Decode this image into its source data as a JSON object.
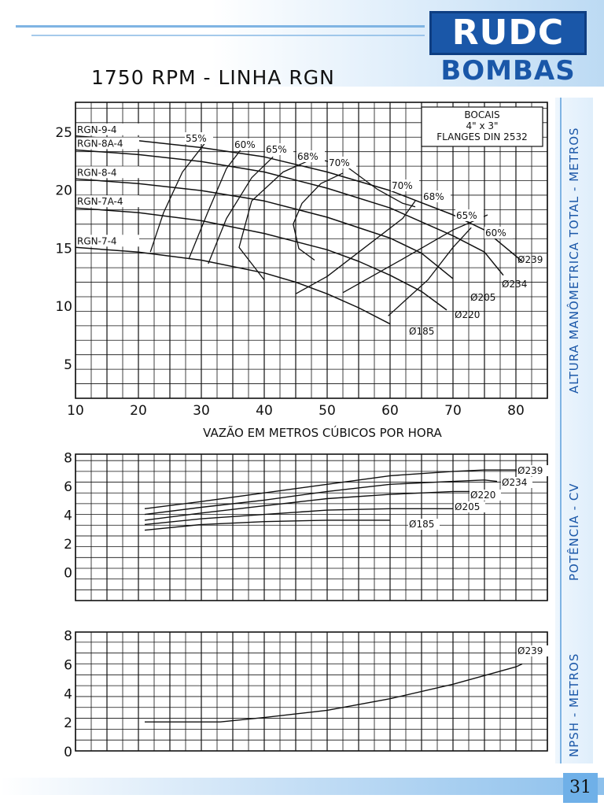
{
  "header": {
    "title": "1750 RPM - LINHA RGN"
  },
  "logo": {
    "line1": "RUDC",
    "line2": "BOMBAS",
    "brand_color": "#1a57a8"
  },
  "side_labels": {
    "head": "ALTURA MANÔMETRICA TOTAL - METROS",
    "power": "POTÊNCIA - CV",
    "npsh": "NPSH - METROS"
  },
  "page_number": "31",
  "chart_data": [
    {
      "type": "line",
      "id": "head",
      "xlabel": "VAZÃO EM METROS CÚBICOS POR HORA",
      "ylabel": "ALTURA MANÔMETRICA TOTAL - METROS",
      "xlim": [
        10,
        85
      ],
      "ylim": [
        2,
        27.5
      ],
      "x_ticks": [
        10,
        20,
        30,
        40,
        50,
        60,
        70,
        80
      ],
      "y_ticks": [
        5,
        10,
        15,
        20,
        25
      ],
      "grid": true,
      "note": [
        "BOCAIS",
        "4\" x 3\"",
        "FLANGES DIN 2532"
      ],
      "series": [
        {
          "name": "RGN-9-4",
          "diameter": "Ø239",
          "x": [
            10,
            20,
            30,
            40,
            50,
            60,
            70,
            75,
            81
          ],
          "y": [
            24.6,
            24.2,
            23.6,
            22.8,
            21.5,
            19.9,
            17.8,
            16.5,
            13.8
          ]
        },
        {
          "name": "RGN-8A-4",
          "diameter": "Ø234",
          "x": [
            10,
            20,
            30,
            40,
            50,
            60,
            70,
            75,
            78
          ],
          "y": [
            23.4,
            23.0,
            22.4,
            21.5,
            20.1,
            18.4,
            16.0,
            14.6,
            12.6
          ]
        },
        {
          "name": "RGN-8-4",
          "diameter": "Ø205",
          "x": [
            10,
            20,
            30,
            40,
            50,
            60,
            65,
            70
          ],
          "y": [
            20.9,
            20.5,
            19.9,
            19.0,
            17.6,
            15.8,
            14.5,
            12.3
          ]
        },
        {
          "name": "RGN-7A-4",
          "diameter": "Ø220",
          "x": [
            10,
            20,
            30,
            40,
            50,
            55,
            60,
            65,
            69
          ],
          "y": [
            18.4,
            18.0,
            17.3,
            16.2,
            14.8,
            13.8,
            12.6,
            11.2,
            9.6
          ]
        },
        {
          "name": "RGN-7-4",
          "diameter": "Ø185",
          "x": [
            10,
            20,
            30,
            40,
            45,
            50,
            55,
            60
          ],
          "y": [
            15.0,
            14.6,
            13.9,
            12.8,
            12.0,
            11.0,
            9.8,
            8.4
          ]
        }
      ],
      "efficiency_curves": [
        {
          "label": "55%",
          "x": [
            21.9,
            24,
            27,
            30.6
          ],
          "y": [
            14.6,
            18,
            21.5,
            24.0
          ]
        },
        {
          "label": "60%",
          "x": [
            28,
            31,
            34,
            36.8
          ],
          "y": [
            14.0,
            18,
            21.8,
            23.8
          ]
        },
        {
          "label": "60%",
          "x": [
            52.5,
            62,
            70,
            75.5
          ],
          "y": [
            11.1,
            14,
            16.5,
            17.8
          ]
        },
        {
          "label": "65%",
          "x": [
            31.1,
            34,
            38,
            41.4
          ],
          "y": [
            13.6,
            17.5,
            21,
            22.8
          ]
        },
        {
          "label": "65%",
          "x": [
            59.7,
            66,
            70,
            72.9
          ],
          "y": [
            9.1,
            12.2,
            15,
            16.7
          ]
        },
        {
          "label": "68%",
          "x": [
            40,
            36,
            38,
            43,
            48,
            53,
            58,
            62,
            64
          ],
          "y": [
            12.2,
            15,
            19,
            21.5,
            22.7,
            22.0,
            20,
            18.8,
            18.5
          ]
        },
        {
          "label": "70%",
          "x": [
            48,
            45.5,
            44.6,
            46,
            49,
            52.5
          ],
          "y": [
            13.9,
            14.9,
            17,
            18.8,
            20.5,
            21.4
          ]
        },
        {
          "label": "70%",
          "x": [
            45,
            50,
            56,
            62,
            64
          ],
          "y": [
            11.0,
            12.5,
            15,
            17.5,
            19
          ]
        }
      ]
    },
    {
      "type": "line",
      "id": "power",
      "ylabel": "POTÊNCIA - CV",
      "ylim": [
        -2,
        8.2
      ],
      "y_ticks": [
        0,
        2,
        4,
        6,
        8
      ],
      "grid": true,
      "series": [
        {
          "name": "Ø239",
          "x": [
            21,
            30,
            40,
            50,
            60,
            70,
            75,
            81
          ],
          "y": [
            4.4,
            4.9,
            5.5,
            6.1,
            6.7,
            7.0,
            7.1,
            7.1
          ]
        },
        {
          "name": "Ø234",
          "x": [
            21,
            30,
            40,
            50,
            60,
            70,
            75,
            77
          ],
          "y": [
            4.0,
            4.5,
            5.0,
            5.6,
            6.1,
            6.3,
            6.4,
            6.3
          ]
        },
        {
          "name": "Ø220",
          "x": [
            21,
            30,
            40,
            50,
            60,
            70,
            73
          ],
          "y": [
            3.6,
            4.1,
            4.6,
            5.1,
            5.4,
            5.6,
            5.6
          ]
        },
        {
          "name": "Ø205",
          "x": [
            21,
            30,
            40,
            50,
            60,
            70
          ],
          "y": [
            3.3,
            3.7,
            4.0,
            4.3,
            4.4,
            4.4
          ]
        },
        {
          "name": "Ø185",
          "x": [
            21,
            30,
            40,
            50,
            60
          ],
          "y": [
            2.9,
            3.3,
            3.5,
            3.6,
            3.6
          ]
        }
      ]
    },
    {
      "type": "line",
      "id": "npsh",
      "ylabel": "NPSH - METROS",
      "ylim": [
        0,
        8.2
      ],
      "y_ticks": [
        0,
        2,
        4,
        6,
        8
      ],
      "grid": true,
      "series": [
        {
          "name": "Ø239",
          "x": [
            21,
            30,
            33,
            40,
            50,
            60,
            70,
            80,
            81
          ],
          "y": [
            2.0,
            2.0,
            2.0,
            2.3,
            2.8,
            3.6,
            4.6,
            5.8,
            6.0
          ]
        }
      ]
    }
  ]
}
